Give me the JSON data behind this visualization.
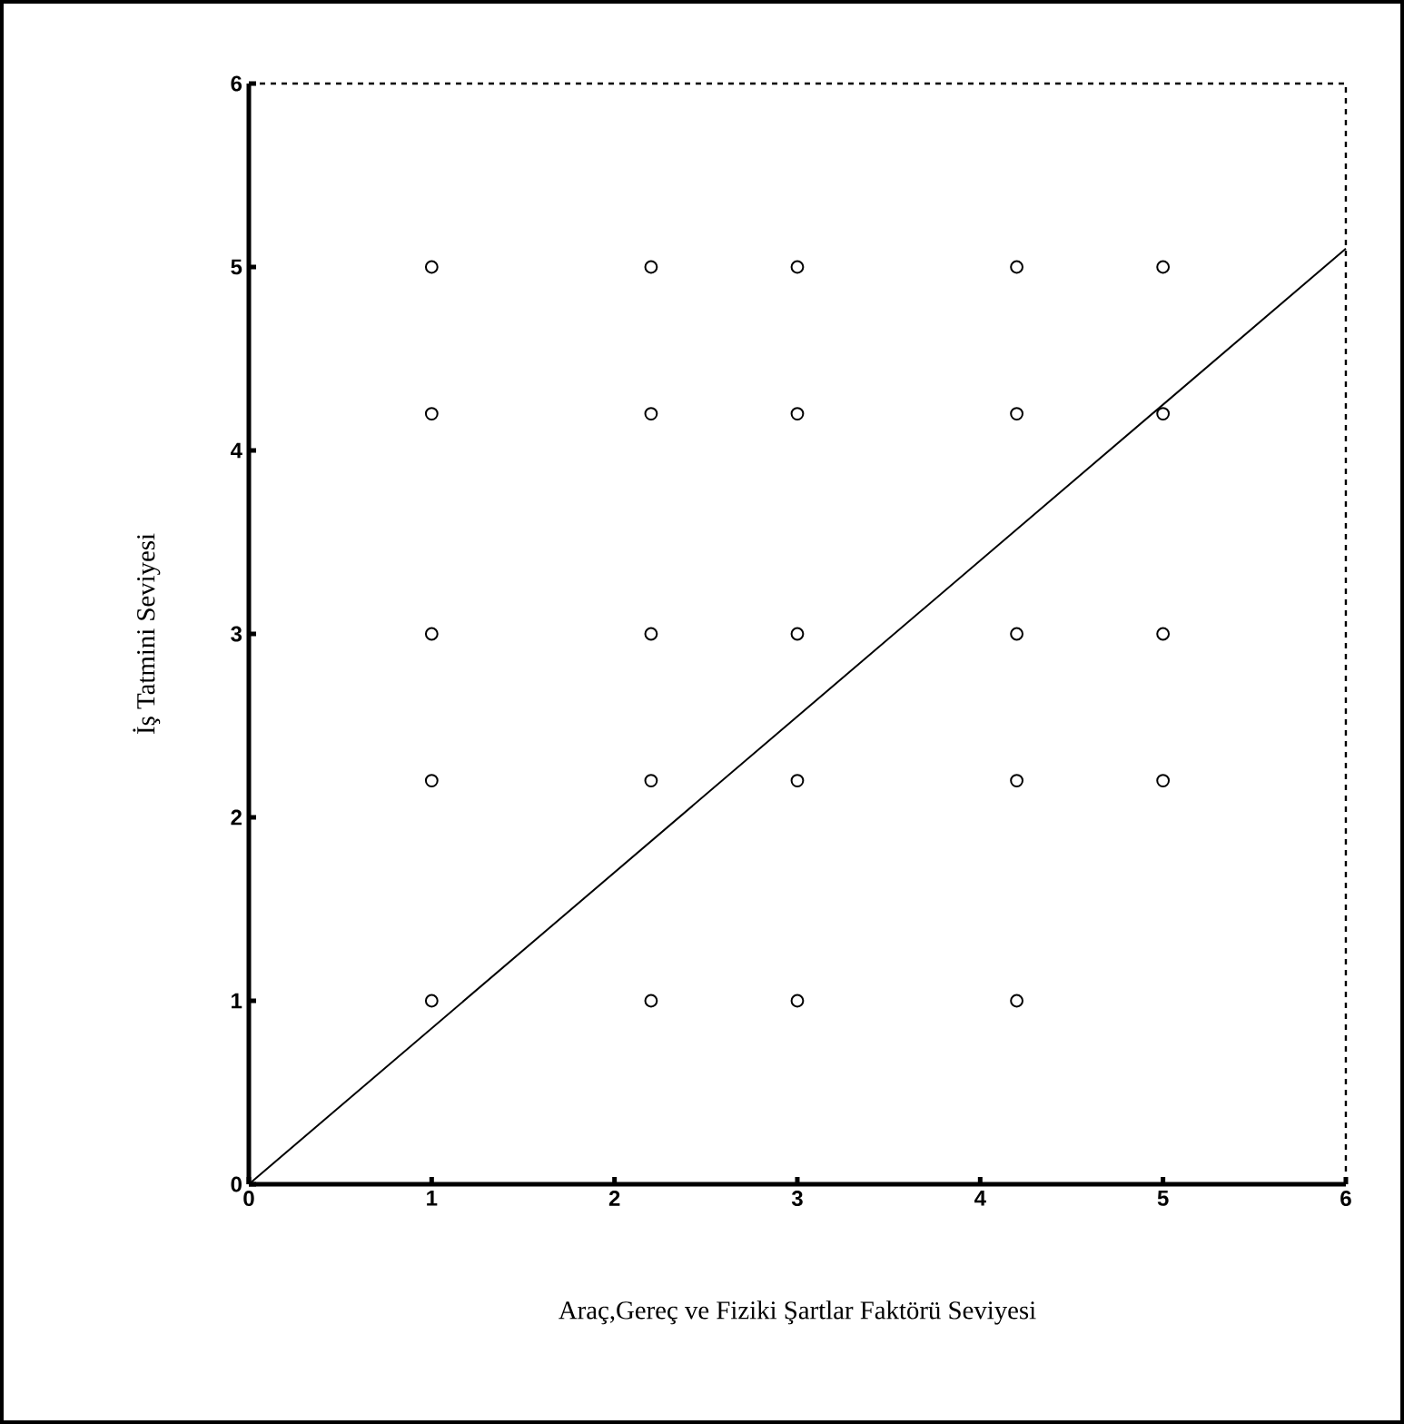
{
  "chart_data": {
    "type": "scatter",
    "xlabel": "Araç,Gereç ve Fiziki Şartlar Faktörü Seviyesi",
    "ylabel": "İş Tatmini Seviyesi",
    "xlim": [
      0,
      6
    ],
    "ylim": [
      0,
      6
    ],
    "xticks": [
      0,
      1,
      2,
      3,
      4,
      5,
      6
    ],
    "yticks": [
      0,
      1,
      2,
      3,
      4,
      5,
      6
    ],
    "grid": false,
    "legend": false,
    "marker": "circle",
    "series": [
      {
        "color": "#000000",
        "x": [
          1,
          2.2,
          3,
          4.2,
          5,
          1,
          2.2,
          3,
          4.2,
          5,
          1,
          2.2,
          3,
          4.2,
          5,
          1,
          2.2,
          3,
          4.2,
          5,
          1,
          2.2,
          3,
          4.2
        ],
        "values": [
          5,
          5,
          5,
          5,
          5,
          4.2,
          4.2,
          4.2,
          4.2,
          4.2,
          3,
          3,
          3,
          3,
          3,
          2.2,
          2.2,
          2.2,
          2.2,
          2.2,
          1,
          1,
          1,
          1
        ]
      },
      {
        "type": "line",
        "color": "#000000",
        "marker": "none",
        "line_style": "solid",
        "x": [
          0,
          6
        ],
        "values": [
          0,
          5.1
        ]
      }
    ]
  }
}
